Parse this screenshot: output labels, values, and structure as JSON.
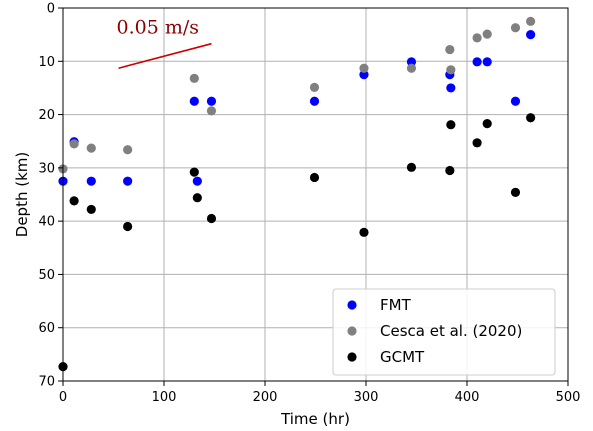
{
  "chart_data": {
    "type": "scatter",
    "xlabel": "Time (hr)",
    "ylabel": "Depth (km)",
    "xlim": [
      0,
      500
    ],
    "ylim": [
      0,
      70
    ],
    "y_inverted": true,
    "x_ticks": [
      0,
      100,
      200,
      300,
      400,
      500
    ],
    "y_ticks": [
      0,
      10,
      20,
      30,
      40,
      50,
      60,
      70
    ],
    "grid": true,
    "legend_position": "lower-right",
    "series": [
      {
        "name": "FMT",
        "color": "#0000ff",
        "points": [
          [
            0,
            32.5
          ],
          [
            11,
            25.1
          ],
          [
            28,
            32.5
          ],
          [
            64,
            32.5
          ],
          [
            130,
            17.5
          ],
          [
            133,
            32.5
          ],
          [
            147,
            17.5
          ],
          [
            249,
            17.5
          ],
          [
            298,
            12.5
          ],
          [
            345,
            10.1
          ],
          [
            383,
            12.5
          ],
          [
            384,
            15.0
          ],
          [
            410,
            10.1
          ],
          [
            420,
            10.1
          ],
          [
            448,
            17.5
          ],
          [
            463,
            5.0
          ]
        ]
      },
      {
        "name": "Cesca et al. (2020)",
        "color": "#808080",
        "points": [
          [
            0,
            30.2
          ],
          [
            11,
            25.5
          ],
          [
            28,
            26.3
          ],
          [
            64,
            26.6
          ],
          [
            130,
            13.2
          ],
          [
            147,
            19.3
          ],
          [
            249,
            14.9
          ],
          [
            298,
            11.3
          ],
          [
            345,
            11.3
          ],
          [
            383,
            7.8
          ],
          [
            384,
            11.6
          ],
          [
            410,
            5.6
          ],
          [
            420,
            4.9
          ],
          [
            448,
            3.7
          ],
          [
            463,
            2.5
          ]
        ]
      },
      {
        "name": "GCMT",
        "color": "#000000",
        "points": [
          [
            0,
            67.3
          ],
          [
            11,
            36.2
          ],
          [
            28,
            37.8
          ],
          [
            64,
            41.0
          ],
          [
            130,
            30.8
          ],
          [
            133,
            35.6
          ],
          [
            147,
            39.5
          ],
          [
            249,
            31.8
          ],
          [
            298,
            42.1
          ],
          [
            345,
            29.9
          ],
          [
            383,
            30.5
          ],
          [
            384,
            21.9
          ],
          [
            410,
            25.3
          ],
          [
            420,
            21.7
          ],
          [
            448,
            34.6
          ],
          [
            463,
            20.6
          ]
        ]
      }
    ],
    "annotations": [
      {
        "text": "0.05 m/s",
        "color": "#8b0000",
        "line_color": "#cc0000",
        "line": [
          [
            55,
            11.3
          ],
          [
            147,
            6.7
          ]
        ],
        "text_anchor": [
          53,
          4.8
        ]
      }
    ]
  }
}
